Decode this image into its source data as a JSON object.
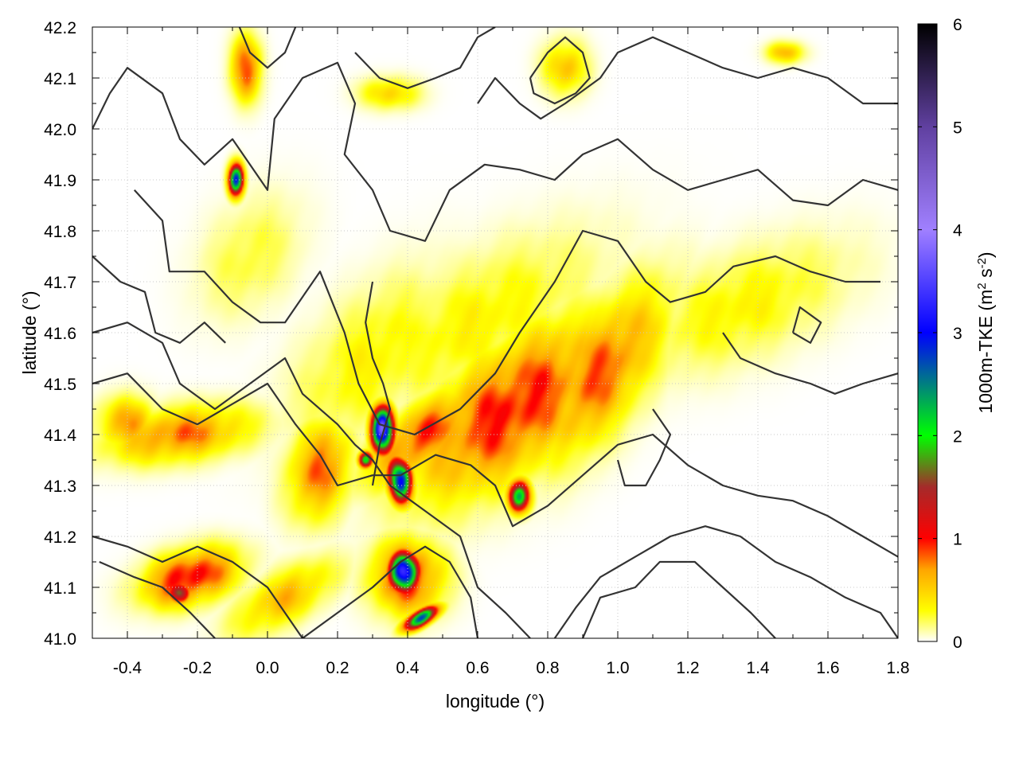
{
  "chart_data": {
    "type": "heatmap",
    "title": "",
    "xlabel": "longitude (°)",
    "ylabel": "latitude (°)",
    "xlim": [
      -0.5,
      1.8
    ],
    "ylim": [
      41.0,
      42.2
    ],
    "xticks": [
      "-0.4",
      "-0.2",
      "0.0",
      "0.2",
      "0.4",
      "0.6",
      "0.8",
      "1.0",
      "1.2",
      "1.4",
      "1.6",
      "1.8"
    ],
    "yticks": [
      "41.0",
      "41.1",
      "41.2",
      "41.3",
      "41.4",
      "41.5",
      "41.6",
      "41.7",
      "41.8",
      "41.9",
      "42.0",
      "42.1",
      "42.2"
    ],
    "grid": true,
    "colorbar": {
      "label_main": "1000m-TKE (m",
      "label_sup1": "2",
      "label_mid": " s",
      "label_sup2": "-2",
      "label_end": ")",
      "range": [
        0,
        6
      ],
      "ticks": [
        "0",
        "1",
        "2",
        "3",
        "4",
        "5",
        "6"
      ],
      "stops": [
        {
          "v": 0.0,
          "color": "#ffffff"
        },
        {
          "v": 0.3,
          "color": "#ffff00"
        },
        {
          "v": 0.7,
          "color": "#ffa500"
        },
        {
          "v": 1.0,
          "color": "#ff0000"
        },
        {
          "v": 1.5,
          "color": "#a52a2a"
        },
        {
          "v": 2.0,
          "color": "#00ff00"
        },
        {
          "v": 3.0,
          "color": "#0000ff"
        },
        {
          "v": 4.0,
          "color": "#a080ff"
        },
        {
          "v": 5.0,
          "color": "#6040a0"
        },
        {
          "v": 6.0,
          "color": "#000000"
        }
      ]
    },
    "tke_features": [
      {
        "lon": 0.7,
        "lat": 41.45,
        "rlon": 0.3,
        "rlat": 0.12,
        "angle": 25,
        "peak": 1.0
      },
      {
        "lon": 0.45,
        "lat": 41.4,
        "rlon": 0.18,
        "rlat": 0.06,
        "angle": 25,
        "peak": 0.9
      },
      {
        "lon": 0.95,
        "lat": 41.52,
        "rlon": 0.22,
        "rlat": 0.1,
        "angle": 40,
        "peak": 0.85
      },
      {
        "lon": 0.6,
        "lat": 41.62,
        "rlon": 0.35,
        "rlat": 0.12,
        "angle": 20,
        "peak": 0.35
      },
      {
        "lon": 1.35,
        "lat": 41.65,
        "rlon": 0.3,
        "rlat": 0.1,
        "angle": 15,
        "peak": 0.35
      },
      {
        "lon": -0.25,
        "lat": 41.4,
        "rlon": 0.2,
        "rlat": 0.05,
        "angle": 5,
        "peak": 0.8
      },
      {
        "lon": 0.15,
        "lat": 41.33,
        "rlon": 0.1,
        "rlat": 0.08,
        "angle": 50,
        "peak": 0.8
      },
      {
        "lon": -0.4,
        "lat": 41.42,
        "rlon": 0.08,
        "rlat": 0.05,
        "angle": 0,
        "peak": 0.7
      },
      {
        "lon": -0.22,
        "lat": 41.12,
        "rlon": 0.13,
        "rlat": 0.05,
        "angle": 10,
        "peak": 1.1
      },
      {
        "lon": 0.4,
        "lat": 41.12,
        "rlon": 0.1,
        "rlat": 0.07,
        "angle": 0,
        "peak": 1.0
      },
      {
        "lon": 0.05,
        "lat": 41.08,
        "rlon": 0.15,
        "rlat": 0.05,
        "angle": 20,
        "peak": 0.6
      },
      {
        "lon": 0.3,
        "lat": 41.55,
        "rlon": 0.25,
        "rlat": 0.12,
        "angle": 30,
        "peak": 0.35
      },
      {
        "lon": -0.05,
        "lat": 41.75,
        "rlon": 0.15,
        "rlat": 0.1,
        "angle": 30,
        "peak": 0.25
      },
      {
        "lon": 0.85,
        "lat": 42.12,
        "rlon": 0.06,
        "rlat": 0.05,
        "angle": 0,
        "peak": 0.6
      },
      {
        "lon": -0.06,
        "lat": 42.12,
        "rlon": 0.04,
        "rlat": 0.06,
        "angle": 0,
        "peak": 0.9
      },
      {
        "lon": 0.35,
        "lat": 42.07,
        "rlon": 0.08,
        "rlat": 0.03,
        "angle": 0,
        "peak": 0.5
      },
      {
        "lon": 1.48,
        "lat": 42.15,
        "rlon": 0.05,
        "rlat": 0.02,
        "angle": 0,
        "peak": 0.6
      },
      {
        "lon": 0.33,
        "lat": 41.41,
        "rlon": 0.03,
        "rlat": 0.04,
        "angle": 0,
        "peak": 3.8
      },
      {
        "lon": 0.38,
        "lat": 41.31,
        "rlon": 0.03,
        "rlat": 0.04,
        "angle": 20,
        "peak": 3.3
      },
      {
        "lon": 0.39,
        "lat": 41.13,
        "rlon": 0.04,
        "rlat": 0.035,
        "angle": 0,
        "peak": 3.4
      },
      {
        "lon": 0.44,
        "lat": 41.04,
        "rlon": 0.05,
        "rlat": 0.015,
        "angle": 20,
        "peak": 2.6
      },
      {
        "lon": -0.09,
        "lat": 41.9,
        "rlon": 0.02,
        "rlat": 0.03,
        "angle": 0,
        "peak": 3.0
      },
      {
        "lon": 0.72,
        "lat": 41.28,
        "rlon": 0.03,
        "rlat": 0.03,
        "angle": 0,
        "peak": 2.2
      },
      {
        "lon": 0.28,
        "lat": 41.35,
        "rlon": 0.02,
        "rlat": 0.015,
        "angle": 0,
        "peak": 2.0
      },
      {
        "lon": -0.25,
        "lat": 41.09,
        "rlon": 0.03,
        "rlat": 0.02,
        "angle": 0,
        "peak": 1.8
      }
    ],
    "contours": [
      [
        [
          -0.5,
          42.0
        ],
        [
          -0.45,
          42.07
        ],
        [
          -0.4,
          42.12
        ],
        [
          -0.3,
          42.07
        ],
        [
          -0.25,
          41.98
        ],
        [
          -0.18,
          41.93
        ],
        [
          -0.1,
          41.98
        ],
        [
          -0.05,
          41.93
        ],
        [
          0.0,
          41.88
        ],
        [
          0.02,
          42.02
        ],
        [
          0.1,
          42.1
        ],
        [
          0.2,
          42.13
        ],
        [
          0.25,
          42.05
        ],
        [
          0.22,
          41.95
        ],
        [
          0.3,
          41.88
        ],
        [
          0.35,
          41.8
        ],
        [
          0.45,
          41.78
        ],
        [
          0.52,
          41.88
        ],
        [
          0.62,
          41.93
        ],
        [
          0.72,
          41.92
        ],
        [
          0.82,
          41.9
        ],
        [
          0.9,
          41.95
        ],
        [
          1.0,
          41.98
        ],
        [
          1.1,
          41.92
        ],
        [
          1.2,
          41.88
        ],
        [
          1.3,
          41.9
        ],
        [
          1.4,
          41.92
        ],
        [
          1.5,
          41.86
        ],
        [
          1.6,
          41.85
        ],
        [
          1.7,
          41.9
        ],
        [
          1.8,
          41.88
        ]
      ],
      [
        [
          -0.38,
          41.88
        ],
        [
          -0.3,
          41.82
        ],
        [
          -0.28,
          41.72
        ],
        [
          -0.18,
          41.72
        ],
        [
          -0.1,
          41.66
        ],
        [
          -0.02,
          41.62
        ],
        [
          0.05,
          41.62
        ],
        [
          0.15,
          41.72
        ],
        [
          0.22,
          41.6
        ],
        [
          0.26,
          41.5
        ],
        [
          0.32,
          41.42
        ],
        [
          0.42,
          41.4
        ],
        [
          0.55,
          41.45
        ],
        [
          0.65,
          41.52
        ],
        [
          0.72,
          41.6
        ],
        [
          0.82,
          41.7
        ],
        [
          0.9,
          41.8
        ],
        [
          1.0,
          41.78
        ],
        [
          1.08,
          41.7
        ],
        [
          1.15,
          41.66
        ],
        [
          1.25,
          41.68
        ],
        [
          1.33,
          41.73
        ],
        [
          1.45,
          41.75
        ],
        [
          1.55,
          41.72
        ],
        [
          1.65,
          41.7
        ],
        [
          1.75,
          41.7
        ]
      ],
      [
        [
          -0.5,
          41.5
        ],
        [
          -0.4,
          41.52
        ],
        [
          -0.3,
          41.45
        ],
        [
          -0.2,
          41.42
        ],
        [
          -0.1,
          41.46
        ],
        [
          0.0,
          41.5
        ],
        [
          0.08,
          41.42
        ],
        [
          0.15,
          41.36
        ],
        [
          0.2,
          41.3
        ],
        [
          0.3,
          41.32
        ],
        [
          0.38,
          41.32
        ],
        [
          0.48,
          41.36
        ],
        [
          0.58,
          41.34
        ],
        [
          0.65,
          41.3
        ],
        [
          0.7,
          41.22
        ],
        [
          0.8,
          41.26
        ],
        [
          0.9,
          41.32
        ],
        [
          1.0,
          41.38
        ],
        [
          1.1,
          41.4
        ],
        [
          1.2,
          41.34
        ],
        [
          1.3,
          41.3
        ],
        [
          1.4,
          41.28
        ],
        [
          1.5,
          41.27
        ],
        [
          1.6,
          41.24
        ],
        [
          1.7,
          41.2
        ],
        [
          1.8,
          41.16
        ]
      ],
      [
        [
          -0.5,
          41.6
        ],
        [
          -0.4,
          41.62
        ],
        [
          -0.3,
          41.58
        ],
        [
          -0.25,
          41.5
        ],
        [
          -0.15,
          41.45
        ],
        [
          -0.05,
          41.5
        ],
        [
          0.05,
          41.55
        ],
        [
          0.1,
          41.48
        ],
        [
          0.2,
          41.42
        ],
        [
          0.25,
          41.38
        ],
        [
          0.3,
          41.35
        ],
        [
          0.35,
          41.3
        ],
        [
          0.45,
          41.25
        ],
        [
          0.55,
          41.2
        ],
        [
          0.6,
          41.1
        ],
        [
          0.68,
          41.05
        ],
        [
          0.75,
          41.0
        ]
      ],
      [
        [
          -0.5,
          41.2
        ],
        [
          -0.4,
          41.18
        ],
        [
          -0.3,
          41.15
        ],
        [
          -0.2,
          41.18
        ],
        [
          -0.1,
          41.15
        ],
        [
          0.0,
          41.1
        ],
        [
          0.05,
          41.05
        ],
        [
          0.1,
          41.0
        ]
      ],
      [
        [
          -0.48,
          41.15
        ],
        [
          -0.38,
          41.12
        ],
        [
          -0.3,
          41.1
        ],
        [
          -0.22,
          41.05
        ],
        [
          -0.15,
          41.0
        ]
      ],
      [
        [
          0.1,
          41.0
        ],
        [
          0.2,
          41.05
        ],
        [
          0.3,
          41.1
        ],
        [
          0.38,
          41.15
        ],
        [
          0.45,
          41.18
        ],
        [
          0.52,
          41.15
        ],
        [
          0.58,
          41.08
        ],
        [
          0.6,
          41.0
        ]
      ],
      [
        [
          0.82,
          41.0
        ],
        [
          0.88,
          41.06
        ],
        [
          0.95,
          41.12
        ],
        [
          1.05,
          41.16
        ],
        [
          1.15,
          41.2
        ],
        [
          1.25,
          41.22
        ],
        [
          1.35,
          41.2
        ],
        [
          1.45,
          41.15
        ],
        [
          1.55,
          41.12
        ],
        [
          1.65,
          41.08
        ],
        [
          1.75,
          41.05
        ],
        [
          1.8,
          41.0
        ]
      ],
      [
        [
          0.9,
          41.0
        ],
        [
          0.95,
          41.08
        ],
        [
          1.05,
          41.1
        ],
        [
          1.12,
          41.15
        ],
        [
          1.22,
          41.15
        ],
        [
          1.3,
          41.1
        ],
        [
          1.38,
          41.05
        ],
        [
          1.45,
          41.0
        ]
      ],
      [
        [
          -0.5,
          41.75
        ],
        [
          -0.42,
          41.7
        ],
        [
          -0.35,
          41.68
        ],
        [
          -0.32,
          41.6
        ],
        [
          -0.25,
          41.58
        ],
        [
          -0.18,
          41.62
        ],
        [
          -0.12,
          41.58
        ]
      ],
      [
        [
          0.3,
          41.3
        ],
        [
          0.32,
          41.38
        ],
        [
          0.35,
          41.45
        ],
        [
          0.33,
          41.5
        ],
        [
          0.3,
          41.55
        ],
        [
          0.28,
          41.62
        ],
        [
          0.3,
          41.7
        ]
      ],
      [
        [
          0.6,
          42.05
        ],
        [
          0.65,
          42.1
        ],
        [
          0.72,
          42.05
        ],
        [
          0.78,
          42.02
        ],
        [
          0.85,
          42.05
        ],
        [
          0.95,
          42.1
        ],
        [
          1.0,
          42.15
        ],
        [
          1.1,
          42.18
        ],
        [
          1.2,
          42.15
        ],
        [
          1.3,
          42.12
        ],
        [
          1.4,
          42.1
        ],
        [
          1.5,
          42.12
        ],
        [
          1.6,
          42.1
        ],
        [
          1.7,
          42.05
        ],
        [
          1.8,
          42.05
        ]
      ],
      [
        [
          0.25,
          42.15
        ],
        [
          0.32,
          42.1
        ],
        [
          0.4,
          42.08
        ],
        [
          0.48,
          42.1
        ],
        [
          0.55,
          42.12
        ],
        [
          0.6,
          42.18
        ],
        [
          0.65,
          42.2
        ]
      ],
      [
        [
          0.75,
          42.1
        ],
        [
          0.8,
          42.15
        ],
        [
          0.85,
          42.18
        ],
        [
          0.9,
          42.15
        ],
        [
          0.92,
          42.1
        ],
        [
          0.88,
          42.07
        ],
        [
          0.82,
          42.05
        ],
        [
          0.76,
          42.07
        ],
        [
          0.75,
          42.1
        ]
      ],
      [
        [
          1.3,
          41.6
        ],
        [
          1.35,
          41.55
        ],
        [
          1.45,
          41.52
        ],
        [
          1.55,
          41.5
        ],
        [
          1.62,
          41.48
        ],
        [
          1.7,
          41.5
        ],
        [
          1.8,
          41.52
        ]
      ],
      [
        [
          1.1,
          41.45
        ],
        [
          1.15,
          41.4
        ],
        [
          1.12,
          41.35
        ],
        [
          1.08,
          41.3
        ],
        [
          1.02,
          41.3
        ],
        [
          1.0,
          41.35
        ]
      ],
      [
        [
          1.5,
          41.6
        ],
        [
          1.55,
          41.58
        ],
        [
          1.58,
          41.62
        ],
        [
          1.52,
          41.65
        ],
        [
          1.5,
          41.6
        ]
      ],
      [
        [
          -0.08,
          42.2
        ],
        [
          -0.05,
          42.15
        ],
        [
          0.0,
          42.12
        ],
        [
          0.05,
          42.15
        ],
        [
          0.08,
          42.2
        ]
      ]
    ]
  }
}
